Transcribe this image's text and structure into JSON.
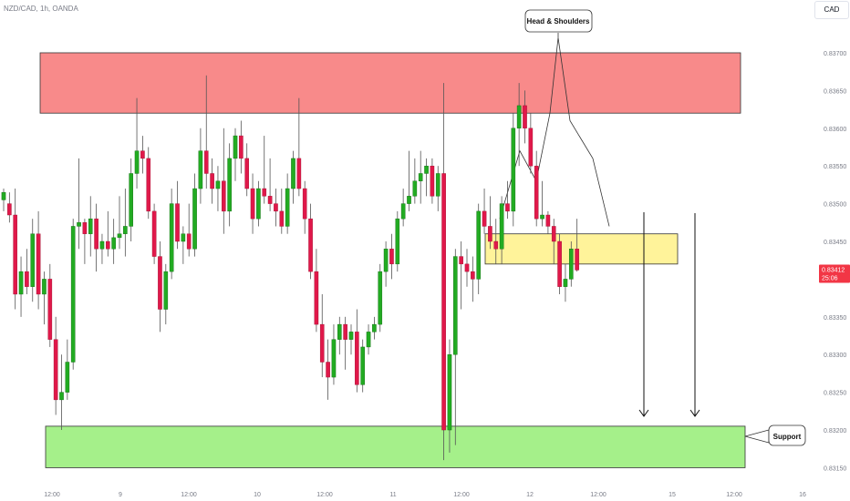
{
  "symbol_line": "NZD/CAD, 1h, OANDA",
  "currency_button": "CAD",
  "price_tag": {
    "price": "0.83412",
    "countdown": "25:06",
    "color": "#f23645"
  },
  "annotations": {
    "head_shoulders": "Head & Shoulders",
    "support": "Support"
  },
  "colors": {
    "up": "#089981",
    "up_fill": "#22ab22",
    "down": "#e0184a",
    "wick": "#555555",
    "resistance_zone": "#f88a8a",
    "neckline_zone": "#fff39a",
    "support_zone": "#a5f08a"
  },
  "chart_data": {
    "type": "candlestick",
    "y_ticks": [
      "0.83750",
      "0.83700",
      "0.83650",
      "0.83600",
      "0.83550",
      "0.83500",
      "0.83450",
      "0.83400",
      "0.83350",
      "0.83300",
      "0.83250",
      "0.83200",
      "0.83150"
    ],
    "x_ticks": [
      "12:00",
      "9",
      "12:00",
      "10",
      "12:00",
      "11",
      "12:00",
      "12",
      "12:00",
      "15",
      "12:00",
      "16"
    ],
    "ylim": [
      0.8313,
      0.8377
    ],
    "zones": {
      "resistance": [
        0.8362,
        0.837
      ],
      "neckline": [
        0.8342,
        0.8346
      ],
      "support": [
        0.8315,
        0.83205
      ]
    },
    "head_shoulders_outline": [
      [
        0.8348,
        0.8357,
        0.8353,
        0.8362,
        0.8372,
        0.8361,
        0.8356,
        0.8347
      ]
    ],
    "candles": [
      [
        0.83505,
        0.8352,
        0.8349,
        0.83515
      ],
      [
        0.835,
        0.83515,
        0.83475,
        0.83485
      ],
      [
        0.83485,
        0.8352,
        0.8336,
        0.8338
      ],
      [
        0.8338,
        0.8343,
        0.8335,
        0.8341
      ],
      [
        0.8341,
        0.8344,
        0.8338,
        0.8339
      ],
      [
        0.8339,
        0.8348,
        0.8337,
        0.8346
      ],
      [
        0.8346,
        0.8349,
        0.8336,
        0.8338
      ],
      [
        0.8338,
        0.8341,
        0.8334,
        0.834
      ],
      [
        0.834,
        0.8342,
        0.8331,
        0.8332
      ],
      [
        0.8332,
        0.8335,
        0.8322,
        0.8324
      ],
      [
        0.8324,
        0.833,
        0.832,
        0.8325
      ],
      [
        0.8325,
        0.8332,
        0.8324,
        0.8329
      ],
      [
        0.8329,
        0.8348,
        0.8328,
        0.8347
      ],
      [
        0.8347,
        0.8356,
        0.8344,
        0.83475
      ],
      [
        0.83475,
        0.8348,
        0.8342,
        0.8346
      ],
      [
        0.8346,
        0.8351,
        0.8343,
        0.8348
      ],
      [
        0.8348,
        0.835,
        0.8341,
        0.8344
      ],
      [
        0.8344,
        0.8346,
        0.8342,
        0.8345
      ],
      [
        0.8345,
        0.8349,
        0.8343,
        0.8344
      ],
      [
        0.8344,
        0.8348,
        0.8342,
        0.83455
      ],
      [
        0.83455,
        0.8351,
        0.8344,
        0.8346
      ],
      [
        0.8346,
        0.8352,
        0.8343,
        0.8347
      ],
      [
        0.8347,
        0.8356,
        0.8345,
        0.8354
      ],
      [
        0.8354,
        0.8364,
        0.8352,
        0.8357
      ],
      [
        0.8357,
        0.8359,
        0.8354,
        0.8356
      ],
      [
        0.8356,
        0.83575,
        0.8348,
        0.8349
      ],
      [
        0.8349,
        0.835,
        0.8342,
        0.8343
      ],
      [
        0.8343,
        0.8345,
        0.8333,
        0.8336
      ],
      [
        0.8336,
        0.8342,
        0.8334,
        0.8341
      ],
      [
        0.8341,
        0.8352,
        0.834,
        0.835
      ],
      [
        0.835,
        0.8353,
        0.8344,
        0.8345
      ],
      [
        0.8345,
        0.8347,
        0.8342,
        0.8346
      ],
      [
        0.8346,
        0.835,
        0.8343,
        0.8344
      ],
      [
        0.8344,
        0.8354,
        0.8343,
        0.8352
      ],
      [
        0.8352,
        0.836,
        0.835,
        0.8357
      ],
      [
        0.8357,
        0.8367,
        0.8352,
        0.8354
      ],
      [
        0.8354,
        0.8356,
        0.835,
        0.8352
      ],
      [
        0.8352,
        0.8355,
        0.8349,
        0.8353
      ],
      [
        0.8353,
        0.836,
        0.8346,
        0.8349
      ],
      [
        0.8349,
        0.8358,
        0.8347,
        0.8356
      ],
      [
        0.8356,
        0.836,
        0.8353,
        0.8359
      ],
      [
        0.8359,
        0.8361,
        0.8354,
        0.8356
      ],
      [
        0.8356,
        0.8358,
        0.8351,
        0.8352
      ],
      [
        0.8352,
        0.8354,
        0.8346,
        0.8348
      ],
      [
        0.8348,
        0.8353,
        0.8347,
        0.8352
      ],
      [
        0.8352,
        0.8359,
        0.835,
        0.8351
      ],
      [
        0.8351,
        0.8356,
        0.8349,
        0.835
      ],
      [
        0.835,
        0.8352,
        0.8347,
        0.8349
      ],
      [
        0.8349,
        0.8352,
        0.8346,
        0.8347
      ],
      [
        0.8347,
        0.8354,
        0.8346,
        0.8352
      ],
      [
        0.8352,
        0.8357,
        0.835,
        0.8356
      ],
      [
        0.8356,
        0.8364,
        0.8351,
        0.8352
      ],
      [
        0.8352,
        0.8353,
        0.8346,
        0.8348
      ],
      [
        0.8348,
        0.835,
        0.834,
        0.8341
      ],
      [
        0.8341,
        0.8344,
        0.8333,
        0.8334
      ],
      [
        0.8334,
        0.8338,
        0.8327,
        0.8329
      ],
      [
        0.8329,
        0.8332,
        0.8324,
        0.8327
      ],
      [
        0.8327,
        0.8334,
        0.8326,
        0.8332
      ],
      [
        0.8332,
        0.8335,
        0.833,
        0.8334
      ],
      [
        0.8334,
        0.8335,
        0.8328,
        0.8332
      ],
      [
        0.8332,
        0.8334,
        0.833,
        0.8333
      ],
      [
        0.8333,
        0.8336,
        0.8325,
        0.8326
      ],
      [
        0.8326,
        0.8332,
        0.8325,
        0.8331
      ],
      [
        0.8331,
        0.8334,
        0.833,
        0.8333
      ],
      [
        0.8333,
        0.8335,
        0.8332,
        0.8334
      ],
      [
        0.8334,
        0.8342,
        0.8333,
        0.8341
      ],
      [
        0.8341,
        0.8345,
        0.8339,
        0.8344
      ],
      [
        0.8344,
        0.8346,
        0.834,
        0.8342
      ],
      [
        0.8342,
        0.8349,
        0.8341,
        0.8348
      ],
      [
        0.8348,
        0.8352,
        0.8347,
        0.835
      ],
      [
        0.835,
        0.8357,
        0.8349,
        0.8351
      ],
      [
        0.8351,
        0.8356,
        0.835,
        0.8353
      ],
      [
        0.8353,
        0.8357,
        0.835,
        0.8354
      ],
      [
        0.8354,
        0.8356,
        0.8351,
        0.8355
      ],
      [
        0.8355,
        0.8356,
        0.835,
        0.8351
      ],
      [
        0.8351,
        0.8355,
        0.8349,
        0.8354
      ],
      [
        0.8354,
        0.8366,
        0.8316,
        0.832
      ],
      [
        0.832,
        0.8332,
        0.8317,
        0.833
      ],
      [
        0.833,
        0.8344,
        0.8318,
        0.8343
      ],
      [
        0.8343,
        0.8345,
        0.8336,
        0.8342
      ],
      [
        0.8342,
        0.8344,
        0.8339,
        0.8341
      ],
      [
        0.8341,
        0.8343,
        0.8337,
        0.834
      ],
      [
        0.834,
        0.835,
        0.8338,
        0.8349
      ],
      [
        0.8349,
        0.8352,
        0.8346,
        0.8347
      ],
      [
        0.8347,
        0.8351,
        0.8344,
        0.8345
      ],
      [
        0.8345,
        0.8348,
        0.8342,
        0.8344
      ],
      [
        0.8344,
        0.8351,
        0.8342,
        0.835
      ],
      [
        0.835,
        0.8353,
        0.8348,
        0.8349
      ],
      [
        0.8349,
        0.8362,
        0.8347,
        0.836
      ],
      [
        0.836,
        0.8366,
        0.8355,
        0.8363
      ],
      [
        0.8363,
        0.8365,
        0.8358,
        0.836
      ],
      [
        0.836,
        0.8362,
        0.8354,
        0.8355
      ],
      [
        0.8355,
        0.8357,
        0.8347,
        0.8348
      ],
      [
        0.8348,
        0.8353,
        0.8347,
        0.83485
      ],
      [
        0.83485,
        0.8349,
        0.8346,
        0.8347
      ],
      [
        0.8347,
        0.8348,
        0.8342,
        0.8345
      ],
      [
        0.8345,
        0.8346,
        0.8338,
        0.8339
      ],
      [
        0.8339,
        0.8342,
        0.8337,
        0.834
      ],
      [
        0.834,
        0.8345,
        0.8339,
        0.8344
      ],
      [
        0.8344,
        0.8348,
        0.8341,
        0.83412
      ]
    ]
  }
}
